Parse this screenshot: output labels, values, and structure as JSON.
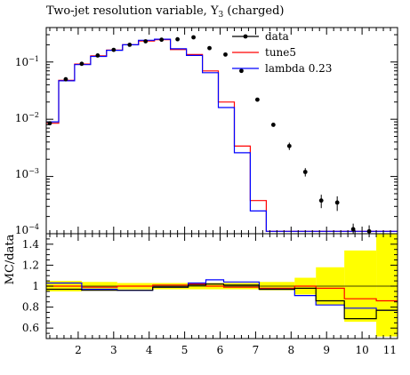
{
  "chart_data": [
    {
      "type": "line",
      "title": "Two-jet resolution variable, Y3 (charged)",
      "title_main": "Two-jet resolution variable, Y",
      "title_sub": "3",
      "title_suffix": " (charged)",
      "ylabel": "",
      "yscale": "log",
      "ylim": [
        0.0001,
        0.4
      ],
      "xlim": [
        1.1,
        11
      ],
      "y_tick_labels": {
        "e-1": {
          "base": "10",
          "exp": "−1"
        },
        "e-2": {
          "base": "10",
          "exp": "−2"
        },
        "e-3": {
          "base": "10",
          "exp": "−3"
        },
        "e-4": {
          "base": "10",
          "exp": "−4"
        }
      },
      "legend_position": "top-right",
      "bin_edges": [
        1.1,
        1.45,
        1.9,
        2.35,
        2.8,
        3.25,
        3.7,
        4.15,
        4.6,
        5.05,
        5.5,
        5.95,
        6.4,
        6.85,
        7.3,
        7.75,
        8.2,
        8.65,
        9.1,
        9.55,
        10.0,
        10.45,
        11
      ],
      "series": [
        {
          "name": "data",
          "color": "#000000",
          "style": "points",
          "x": [
            1.2,
            1.65,
            2.1,
            2.55,
            3.0,
            3.45,
            3.9,
            4.35,
            4.8,
            5.25,
            5.7,
            6.15,
            6.6,
            7.05,
            7.5,
            7.95,
            8.4,
            8.85,
            9.3,
            9.75,
            10.2
          ],
          "values": [
            0.0085,
            0.05,
            0.093,
            0.13,
            0.163,
            0.2,
            0.23,
            0.245,
            0.25,
            0.27,
            0.175,
            0.135,
            0.07,
            0.022,
            0.008,
            0.0034,
            0.0012,
            0.00038,
            0.00035,
            0.00012,
            0.00011
          ],
          "errors": [
            0.0004,
            0.002,
            0.003,
            0.004,
            0.004,
            0.005,
            0.006,
            0.006,
            0.006,
            0.007,
            0.005,
            0.004,
            0.003,
            0.001,
            0.0005,
            0.0005,
            0.0002,
            0.0001,
            0.0001,
            3e-05,
            3e-05
          ]
        },
        {
          "name": "tune5",
          "color": "#ff0000",
          "style": "step",
          "values": [
            0.0085,
            0.048,
            0.092,
            0.128,
            0.162,
            0.2,
            0.232,
            0.245,
            0.165,
            0.135,
            0.07,
            0.02,
            0.0034,
            0.00038,
            0.00011,
            0.00011,
            0.00011,
            0.00011,
            0.00011,
            0.00011,
            0.00011,
            0.00011
          ]
        },
        {
          "name": "lambda 0.23",
          "color": "#0000ff",
          "style": "step",
          "values": [
            0.009,
            0.047,
            0.09,
            0.125,
            0.16,
            0.2,
            0.24,
            0.25,
            0.17,
            0.13,
            0.065,
            0.016,
            0.0026,
            0.00025,
            0.00011,
            0.00011,
            0.00011,
            0.00011,
            0.00011,
            0.00011,
            0.00011,
            0.00011
          ]
        }
      ]
    },
    {
      "type": "line",
      "title": "",
      "ylabel": "MC/data",
      "xlabel": "",
      "ylim": [
        0.5,
        1.5
      ],
      "xlim": [
        1.1,
        11
      ],
      "y_ticks": [
        0.6,
        0.8,
        1,
        1.2,
        1.4
      ],
      "y_tick_labels": [
        "0.6",
        "0.8",
        "1",
        "1.2",
        "1.4"
      ],
      "x_ticks": [
        2,
        3,
        4,
        5,
        6,
        7,
        8,
        9,
        10,
        11
      ],
      "x_tick_labels": [
        "2",
        "3",
        "4",
        "5",
        "6",
        "7",
        "8",
        "9",
        "10",
        "11"
      ],
      "bin_edges": [
        1.1,
        2.1,
        3.1,
        4.1,
        5.1,
        5.6,
        6.1,
        7.1,
        8.1,
        8.7,
        9.5,
        10.4,
        11
      ],
      "uncertainty_band": {
        "color": "#ffff00",
        "low": [
          0.95,
          0.96,
          0.97,
          0.97,
          0.97,
          0.97,
          0.97,
          0.96,
          0.92,
          0.82,
          0.66,
          0.52
        ],
        "high": [
          1.05,
          1.04,
          1.03,
          1.03,
          1.03,
          1.03,
          1.03,
          1.04,
          1.08,
          1.18,
          1.34,
          1.5
        ]
      },
      "series": [
        {
          "name": "tune5",
          "color": "#ff0000",
          "values": [
            1.0,
            0.99,
            1.0,
            1.01,
            1.02,
            1.0,
            0.99,
            0.98,
            1.0,
            0.98,
            0.88,
            0.86
          ]
        },
        {
          "name": "lambda 0.23",
          "color": "#0000ff",
          "values": [
            1.03,
            0.97,
            0.96,
            0.99,
            1.03,
            1.06,
            1.04,
            0.97,
            0.91,
            0.82,
            0.79,
            0.77
          ]
        },
        {
          "name": "data",
          "color": "#000000",
          "values": [
            0.97,
            0.96,
            0.96,
            0.99,
            1.01,
            1.02,
            1.01,
            0.97,
            0.98,
            0.86,
            0.69,
            0.77
          ]
        }
      ]
    }
  ]
}
